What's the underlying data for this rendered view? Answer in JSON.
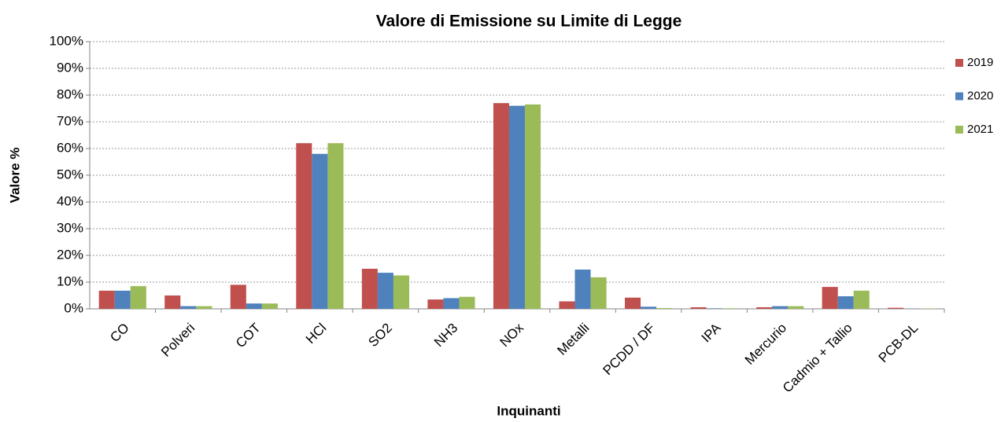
{
  "chart_data": {
    "type": "bar",
    "title": "Valore di Emissione su Limite di Legge",
    "x_label": "Inquinanti",
    "y_label": "Valore %",
    "categories": [
      "CO",
      "Polveri",
      "COT",
      "HCl",
      "SO2",
      "NH3",
      "NOx",
      "Metalli",
      "PCDD / DF",
      "IPA",
      "Mercurio",
      "Cadmio + Tallio",
      "PCB-DL"
    ],
    "series": [
      {
        "name": "2019",
        "color": "#c0504d",
        "values": [
          6.8,
          5,
          9,
          62,
          15,
          3.5,
          77,
          2.8,
          4.2,
          0.6,
          0.6,
          8.2,
          0.4
        ]
      },
      {
        "name": "2020",
        "color": "#4f81bd",
        "values": [
          6.8,
          1,
          2,
          58,
          13.5,
          4,
          76,
          14.7,
          0.8,
          0.2,
          1,
          4.7,
          0.1
        ]
      },
      {
        "name": "2021",
        "color": "#9bbb59",
        "values": [
          8.5,
          1,
          2,
          62,
          12.5,
          4.5,
          76.5,
          11.8,
          0.3,
          0.2,
          1,
          6.8,
          0.1
        ]
      }
    ],
    "ylim": [
      0,
      100
    ],
    "yticks": [
      {
        "value": 0,
        "label": "0%"
      },
      {
        "value": 10,
        "label": "10%"
      },
      {
        "value": 20,
        "label": "20%"
      },
      {
        "value": 30,
        "label": "30%"
      },
      {
        "value": 40,
        "label": "40%"
      },
      {
        "value": 50,
        "label": "50%"
      },
      {
        "value": 60,
        "label": "60%"
      },
      {
        "value": 70,
        "label": "70%"
      },
      {
        "value": 80,
        "label": "80%"
      },
      {
        "value": 90,
        "label": "90%"
      },
      {
        "value": 100,
        "label": "100%"
      }
    ],
    "grid": true,
    "legend": "right"
  }
}
